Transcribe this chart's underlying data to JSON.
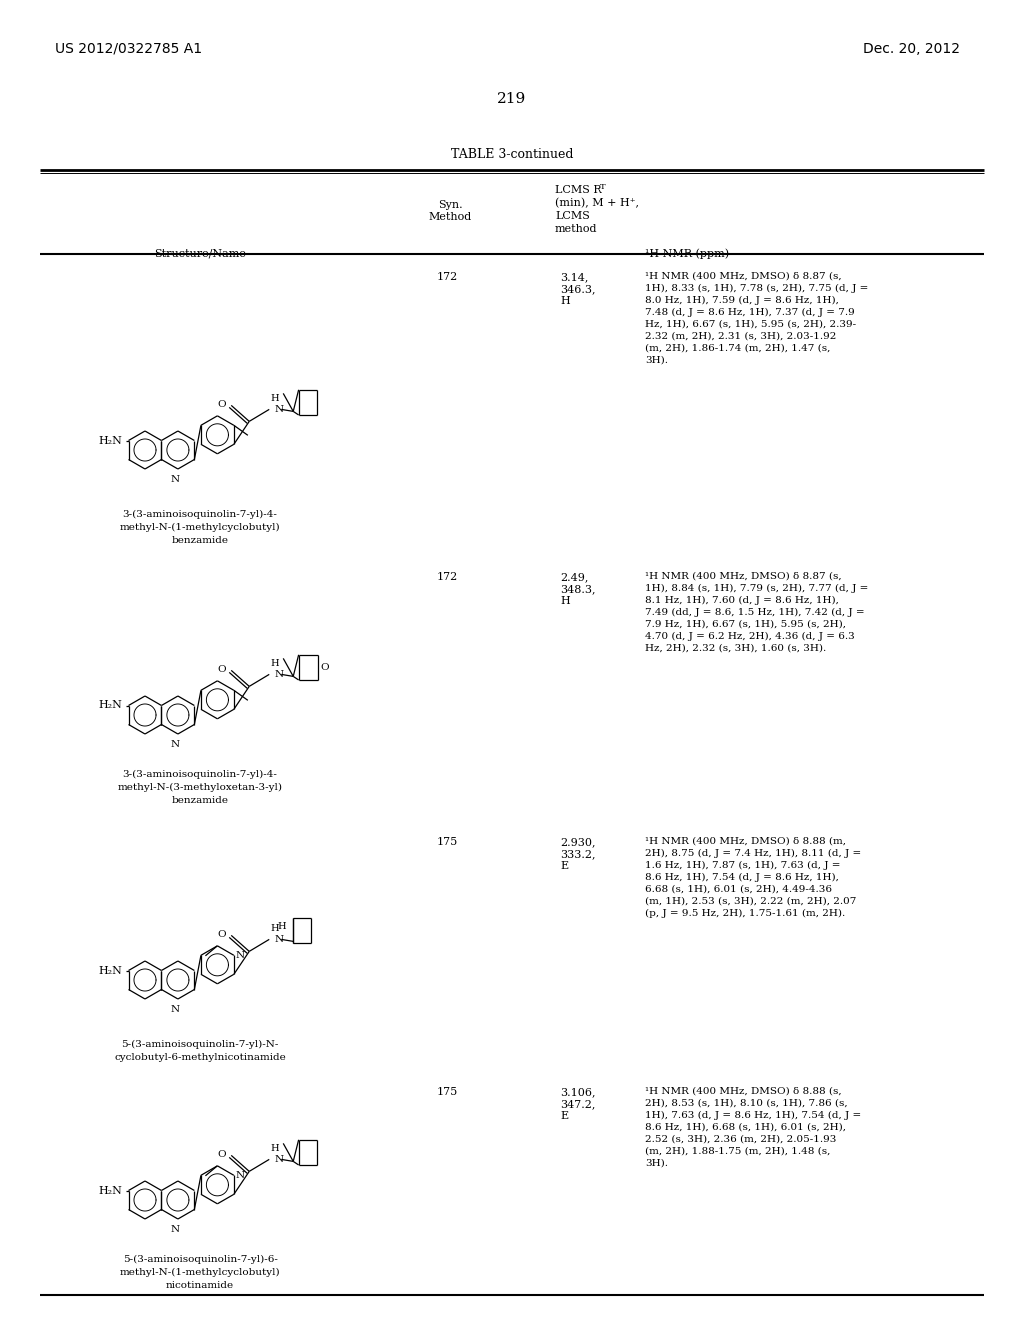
{
  "page_number": "219",
  "patent_number": "US 2012/0322785 A1",
  "patent_date": "Dec. 20, 2012",
  "table_title": "TABLE 3-continued",
  "background_color": "#ffffff",
  "text_color": "#000000",
  "rows": [
    {
      "syn_method": "172",
      "lcms": "3.14,\n346.3,\nH",
      "nmr_lines": [
        "¹H NMR (400 MHz, DMSO) δ 8.87 (s,",
        "1H), 8.33 (s, 1H), 7.78 (s, 2H), 7.75 (d, J =",
        "8.0 Hz, 1H), 7.59 (d, J = 8.6 Hz, 1H),",
        "7.48 (d, J = 8.6 Hz, 1H), 7.37 (d, J = 7.9",
        "Hz, 1H), 6.67 (s, 1H), 5.95 (s, 2H), 2.39-",
        "2.32 (m, 2H), 2.31 (s, 3H), 2.03-1.92",
        "(m, 2H), 1.86-1.74 (m, 2H), 1.47 (s,",
        "3H)."
      ],
      "name_lines": [
        "3-(3-aminoisoquinolin-7-yl)-4-",
        "methyl-N-(1-methylcyclobutyl)",
        "benzamide"
      ]
    },
    {
      "syn_method": "172",
      "lcms": "2.49,\n348.3,\nH",
      "nmr_lines": [
        "¹H NMR (400 MHz, DMSO) δ 8.87 (s,",
        "1H), 8.84 (s, 1H), 7.79 (s, 2H), 7.77 (d, J =",
        "8.1 Hz, 1H), 7.60 (d, J = 8.6 Hz, 1H),",
        "7.49 (dd, J = 8.6, 1.5 Hz, 1H), 7.42 (d, J =",
        "7.9 Hz, 1H), 6.67 (s, 1H), 5.95 (s, 2H),",
        "4.70 (d, J = 6.2 Hz, 2H), 4.36 (d, J = 6.3",
        "Hz, 2H), 2.32 (s, 3H), 1.60 (s, 3H)."
      ],
      "name_lines": [
        "3-(3-aminoisoquinolin-7-yl)-4-",
        "methyl-N-(3-methyloxetan-3-yl)",
        "benzamide"
      ]
    },
    {
      "syn_method": "175",
      "lcms": "2.930,\n333.2,\nE",
      "nmr_lines": [
        "¹H NMR (400 MHz, DMSO) δ 8.88 (m,",
        "2H), 8.75 (d, J = 7.4 Hz, 1H), 8.11 (d, J =",
        "1.6 Hz, 1H), 7.87 (s, 1H), 7.63 (d, J =",
        "8.6 Hz, 1H), 7.54 (d, J = 8.6 Hz, 1H),",
        "6.68 (s, 1H), 6.01 (s, 2H), 4.49-4.36",
        "(m, 1H), 2.53 (s, 3H), 2.22 (m, 2H), 2.07",
        "(p, J = 9.5 Hz, 2H), 1.75-1.61 (m, 2H)."
      ],
      "name_lines": [
        "5-(3-aminoisoquinolin-7-yl)-N-",
        "cyclobutyl-6-methylnicotinamide"
      ]
    },
    {
      "syn_method": "175",
      "lcms": "3.106,\n347.2,\nE",
      "nmr_lines": [
        "¹H NMR (400 MHz, DMSO) δ 8.88 (s,",
        "2H), 8.53 (s, 1H), 8.10 (s, 1H), 7.86 (s,",
        "1H), 7.63 (d, J = 8.6 Hz, 1H), 7.54 (d, J =",
        "8.6 Hz, 1H), 6.68 (s, 1H), 6.01 (s, 2H),",
        "2.52 (s, 3H), 2.36 (m, 2H), 2.05-1.93",
        "(m, 2H), 1.88-1.75 (m, 2H), 1.48 (s,",
        "3H)."
      ],
      "name_lines": [
        "5-(3-aminoisoquinolin-7-yl)-6-",
        "methyl-N-(1-methylcyclobutyl)",
        "nicotinamide"
      ]
    }
  ]
}
